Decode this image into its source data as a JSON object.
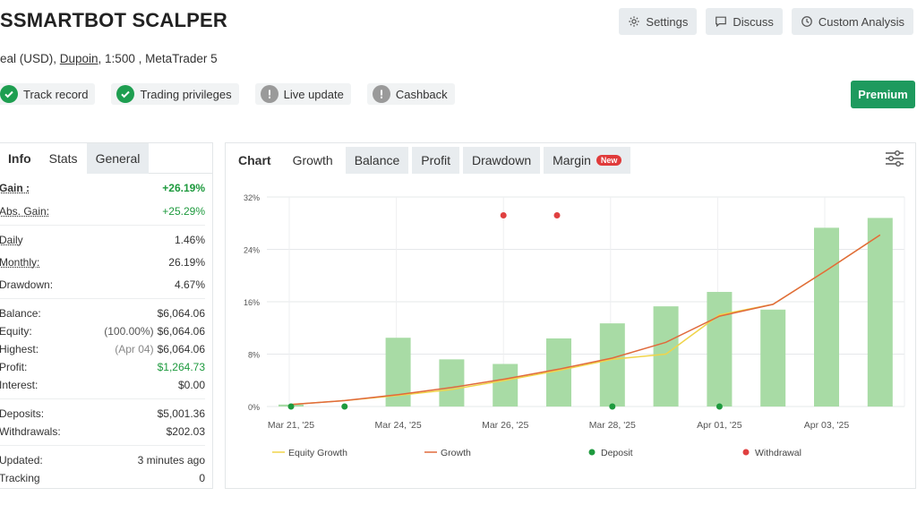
{
  "header": {
    "title": "SSMARTBOT SCALPER",
    "subtitle_prefix": "eal (USD), ",
    "broker": "Dupoin",
    "subtitle_suffix": ", 1:500 , MetaTrader 5"
  },
  "actions": {
    "settings": "Settings",
    "discuss": "Discuss",
    "custom_analysis": "Custom Analysis",
    "premium": "Premium"
  },
  "badges": {
    "track_record": "Track record",
    "trading_privileges": "Trading privileges",
    "live_update": "Live update",
    "cashback": "Cashback"
  },
  "left_tabs": {
    "info": "Info",
    "stats": "Stats",
    "general": "General"
  },
  "stats": {
    "gain": {
      "label": "Gain :",
      "value": "+26.19%"
    },
    "abs_gain": {
      "label": "Abs. Gain:",
      "value": "+25.29%"
    },
    "daily": {
      "label": "Daily",
      "value": "1.46%"
    },
    "monthly": {
      "label": "Monthly:",
      "value": "26.19%"
    },
    "drawdown": {
      "label": "Drawdown:",
      "value": "4.67%"
    },
    "balance": {
      "label": "Balance:",
      "value": "$6,064.06"
    },
    "equity": {
      "label": "Equity:",
      "pre": "(100.00%)",
      "value": "$6,064.06"
    },
    "highest": {
      "label": "Highest:",
      "pre": "(Apr 04)",
      "value": "$6,064.06"
    },
    "profit": {
      "label": "Profit:",
      "value": "$1,264.73"
    },
    "interest": {
      "label": "Interest:",
      "value": "$0.00"
    },
    "deposits": {
      "label": "Deposits:",
      "value": "$5,001.36"
    },
    "withdrawals": {
      "label": "Withdrawals:",
      "value": "$202.03"
    },
    "updated": {
      "label": "Updated:",
      "value": "3 minutes ago"
    },
    "tracking": {
      "label": "Tracking",
      "value": "0"
    }
  },
  "chart_tabs": {
    "chart": "Chart",
    "growth": "Growth",
    "balance": "Balance",
    "profit": "Profit",
    "drawdown": "Drawdown",
    "margin": "Margin",
    "new": "New"
  },
  "colors": {
    "bar": "#a8dba5",
    "growth": "#e06a3c",
    "equity": "#f0d44a",
    "deposit": "#1e9a3e",
    "withdrawal": "#e04040",
    "premium": "#1e9a5e"
  },
  "chart_data": {
    "type": "bar+line",
    "y_ticks": [
      "0%",
      "8%",
      "16%",
      "24%",
      "32%"
    ],
    "ylim": [
      0,
      32
    ],
    "x_tick_labels": [
      "Mar 21, '25",
      "Mar 24, '25",
      "Mar 26, '25",
      "Mar 28, '25",
      "Apr 01, '25",
      "Apr 03, '25"
    ],
    "bars": [
      0.3,
      0,
      10.5,
      7.2,
      6.5,
      10.4,
      12.7,
      15.3,
      17.5,
      14.8,
      27.3,
      28.8
    ],
    "growth": [
      0.3,
      0.9,
      1.8,
      2.9,
      4.2,
      5.7,
      7.4,
      9.8,
      13.8,
      15.6,
      20.8,
      26.2
    ],
    "equity_growth": [
      0.3,
      0.9,
      1.7,
      2.6,
      4.0,
      5.5,
      7.2,
      8.0,
      14.0,
      15.6,
      20.8,
      26.2
    ],
    "deposits_at": [
      0,
      1,
      6,
      8
    ],
    "withdrawals_at": [
      4,
      5
    ],
    "legend": [
      "Equity Growth",
      "Growth",
      "Deposit",
      "Withdrawal"
    ],
    "legend_position": "bottom"
  }
}
